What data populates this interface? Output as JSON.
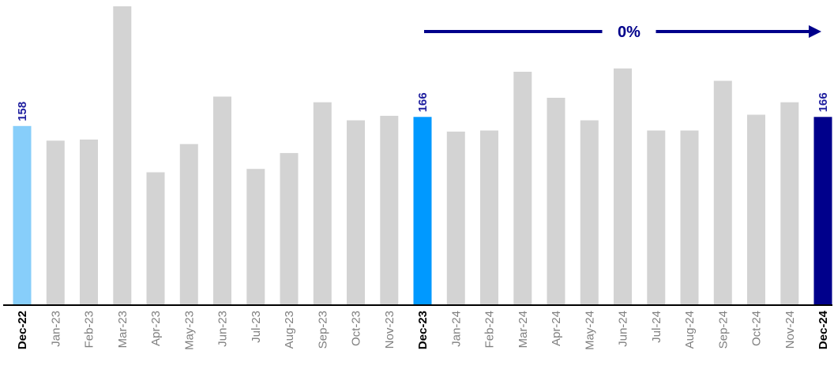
{
  "chart_data": {
    "type": "bar",
    "categories": [
      "Dec-22",
      "Jan-23",
      "Feb-23",
      "Mar-23",
      "Apr-23",
      "May-23",
      "Jun-23",
      "Jul-23",
      "Aug-23",
      "Sep-23",
      "Oct-23",
      "Nov-23",
      "Dec-23",
      "Jan-24",
      "Feb-24",
      "Mar-24",
      "Apr-24",
      "May-24",
      "Jun-24",
      "Jul-24",
      "Aug-24",
      "Sep-24",
      "Oct-24",
      "Nov-24",
      "Dec-24"
    ],
    "values": [
      158,
      145,
      146,
      264,
      117,
      142,
      184,
      120,
      134,
      179,
      163,
      167,
      166,
      153,
      154,
      206,
      183,
      163,
      209,
      154,
      154,
      198,
      168,
      179,
      166
    ],
    "bar_colors": [
      "#87cefa",
      "#d3d3d3",
      "#d3d3d3",
      "#d3d3d3",
      "#d3d3d3",
      "#d3d3d3",
      "#d3d3d3",
      "#d3d3d3",
      "#d3d3d3",
      "#d3d3d3",
      "#d3d3d3",
      "#d3d3d3",
      "#0099ff",
      "#d3d3d3",
      "#d3d3d3",
      "#d3d3d3",
      "#d3d3d3",
      "#d3d3d3",
      "#d3d3d3",
      "#d3d3d3",
      "#d3d3d3",
      "#d3d3d3",
      "#d3d3d3",
      "#d3d3d3",
      "#00008b"
    ],
    "bold_categories": [
      "Dec-22",
      "Dec-23",
      "Dec-24"
    ],
    "data_labels": [
      {
        "category": "Dec-22",
        "text": "158"
      },
      {
        "category": "Dec-23",
        "text": "166"
      },
      {
        "category": "Dec-24",
        "text": "166"
      }
    ],
    "annotation": {
      "text": "0%",
      "from": "Dec-23",
      "to": "Dec-24",
      "color": "#00008b"
    },
    "ylim": [
      0,
      264
    ],
    "title": "",
    "xlabel": "",
    "ylabel": "",
    "grid": false,
    "legend": "none"
  }
}
